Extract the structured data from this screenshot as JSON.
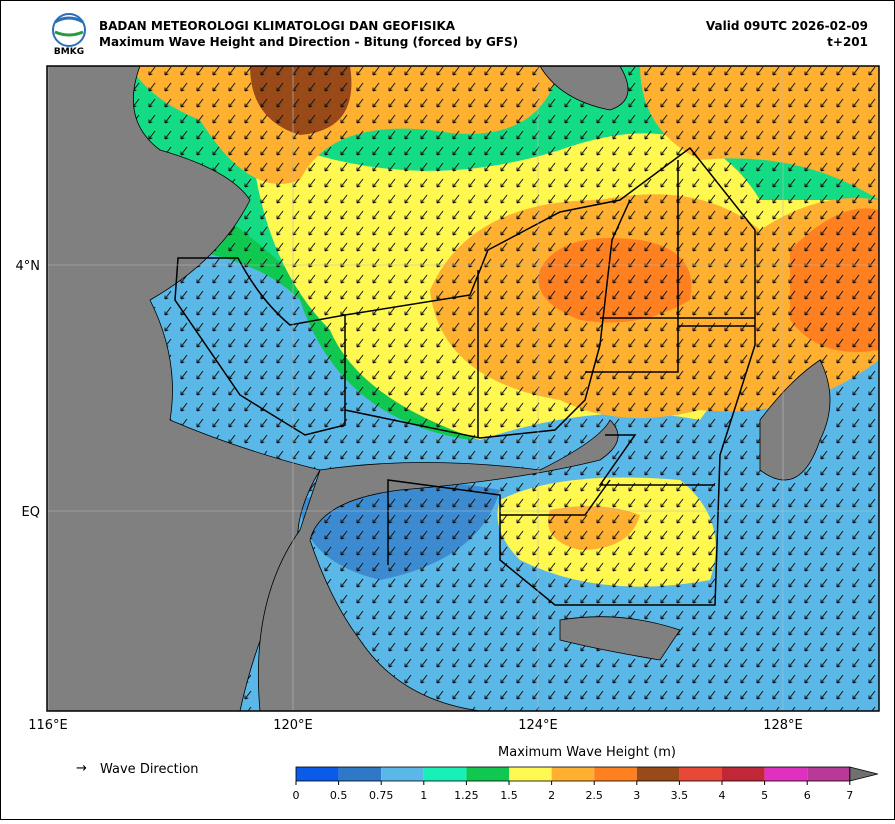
{
  "header": {
    "title": "BADAN METEOROLOGI KLIMATOLOGI DAN GEOFISIKA",
    "subtitle": "Maximum Wave Height and Direction - Bitung (forced by GFS)",
    "valid": "Valid 09UTC 2026-02-09",
    "lead": "t+201",
    "logo_text": "BMKG"
  },
  "axes": {
    "x_labels": [
      "116°E",
      "120°E",
      "124°E",
      "128°E"
    ],
    "y_labels": [
      "4°N",
      "EQ"
    ]
  },
  "legend": {
    "arrow": "→",
    "label": "Wave Direction"
  },
  "colorbar": {
    "title": "Maximum Wave Height (m)",
    "levels": [
      0,
      0.5,
      0.75,
      1,
      1.25,
      1.5,
      2,
      2.5,
      3,
      3.5,
      4,
      5,
      6,
      7
    ],
    "colors": [
      "#0a5ce8",
      "#2f78c8",
      "#5ab8e8",
      "#18f0b8",
      "#10c850",
      "#fff850",
      "#ffb030",
      "#ff8020",
      "#9a4a18",
      "#e84838",
      "#c02838",
      "#e030c0",
      "#b83898"
    ],
    "extend_color": "#707070"
  }
}
